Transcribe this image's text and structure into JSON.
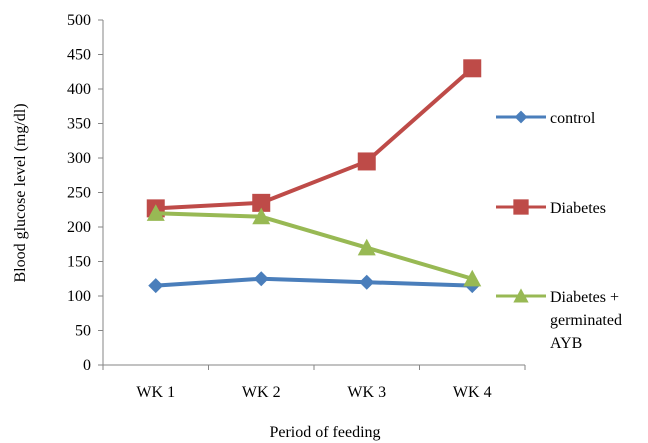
{
  "chart_data": {
    "type": "line",
    "title": "",
    "xlabel": "Period of feeding",
    "ylabel": "Blood glucose level (mg/dl)",
    "categories": [
      "WK 1",
      "WK 2",
      "WK 3",
      "WK 4"
    ],
    "ylim": [
      0,
      500
    ],
    "yticks": [
      0,
      50,
      100,
      150,
      200,
      250,
      300,
      350,
      400,
      450,
      500
    ],
    "grid": false,
    "legend_position": "right",
    "series": [
      {
        "name": "control",
        "legend_lines": [
          "control"
        ],
        "values": [
          115,
          125,
          120,
          115
        ],
        "color": "#4A7EBB",
        "marker": "diamond"
      },
      {
        "name": "Diabetes",
        "legend_lines": [
          "Diabetes"
        ],
        "values": [
          227,
          235,
          295,
          430
        ],
        "color": "#BE4B48",
        "marker": "square"
      },
      {
        "name": "Diabetes + germinated AYB",
        "legend_lines": [
          "Diabetes  +",
          "germinated",
          "AYB"
        ],
        "values": [
          220,
          215,
          170,
          125
        ],
        "color": "#98B954",
        "marker": "triangle"
      }
    ]
  }
}
